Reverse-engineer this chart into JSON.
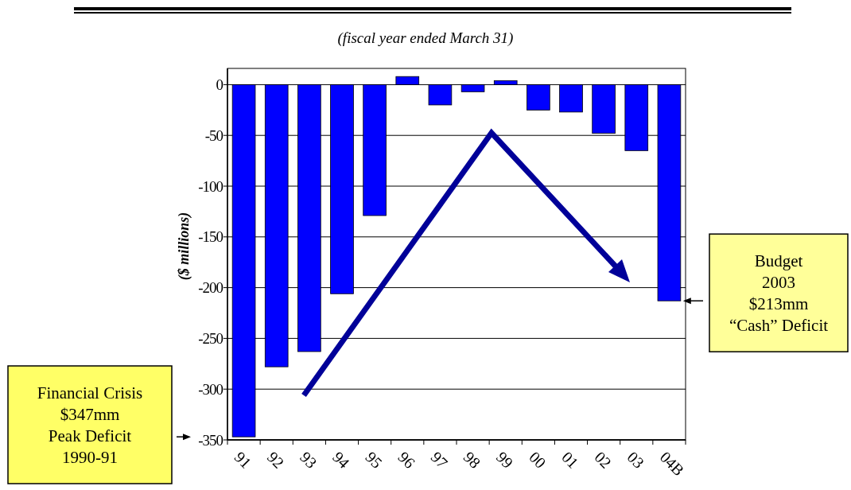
{
  "chart_data": {
    "type": "bar",
    "subtitle": "(fiscal year ended March 31)",
    "ylabel": "($ millions)",
    "categories": [
      "91",
      "92",
      "93",
      "94",
      "95",
      "96",
      "97",
      "98",
      "99",
      "00",
      "01",
      "02",
      "03",
      "04B"
    ],
    "values": [
      -347,
      -278,
      -263,
      -206,
      -129,
      8,
      -20,
      -7,
      4,
      -25,
      -27,
      -48,
      -65,
      -213
    ],
    "color": "#0000ff",
    "ylim": [
      -350,
      16
    ],
    "yticks": [
      0,
      -50,
      -100,
      -150,
      -200,
      -250,
      -300,
      -350
    ],
    "grid": "y",
    "annotations": [
      "Financial Crisis\n$347mm\nPeak Deficit\n1990-91",
      "Budget\n2003\n$213mm\n“Cash” Deficit"
    ]
  }
}
